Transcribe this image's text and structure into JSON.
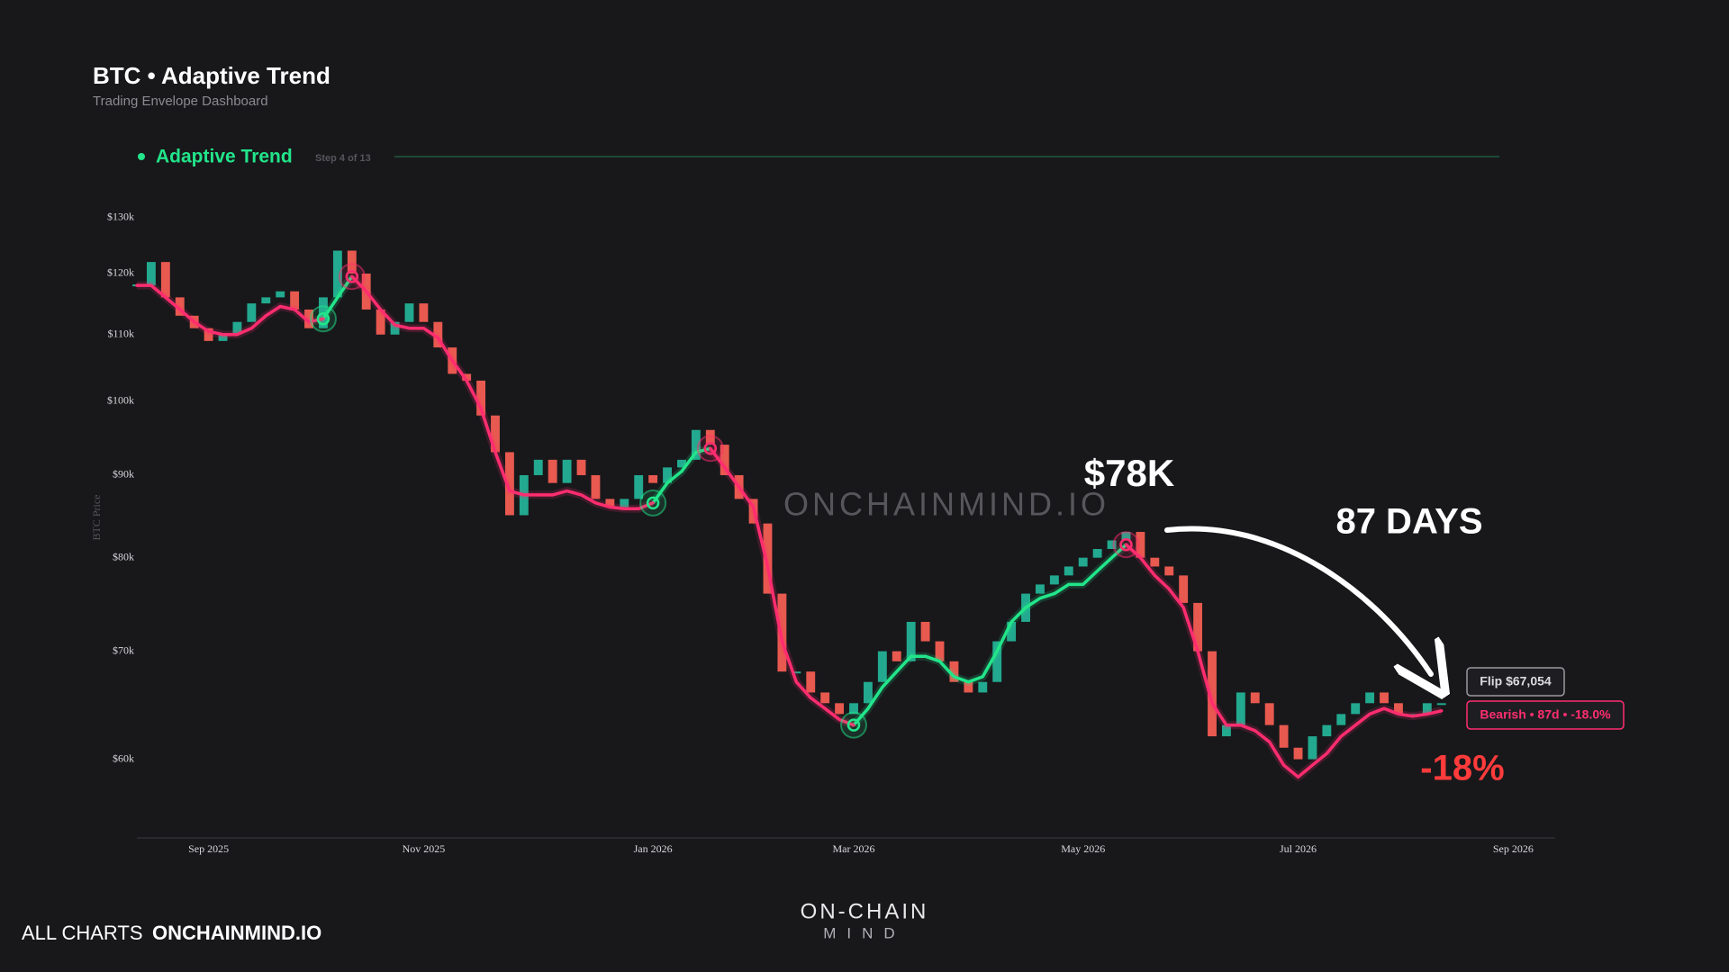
{
  "header": {
    "title": "BTC • Adaptive Trend",
    "subtitle": "Trading Envelope Dashboard"
  },
  "step": {
    "label": "Adaptive Trend",
    "counter": "Step 4 of 13"
  },
  "watermark": "ONCHAINMIND.IO",
  "footer": {
    "link_label": "ALL CHARTS",
    "link": "ONCHAINMIND.IO",
    "logo_top": "ON-CHAIN",
    "logo_bottom": "MIND"
  },
  "chart_data": {
    "type": "candlestick",
    "ylabel": "BTC Price",
    "log_scale": true,
    "grid": false,
    "ylim": [
      53700,
      133500
    ],
    "yticks": [
      {
        "value": 60000,
        "label": "$60k"
      },
      {
        "value": 70000,
        "label": "$70k"
      },
      {
        "value": 80000,
        "label": "$80k"
      },
      {
        "value": 90000,
        "label": "$90k"
      },
      {
        "value": 100000,
        "label": "$100k"
      },
      {
        "value": 110000,
        "label": "$110k"
      },
      {
        "value": 120000,
        "label": "$120k"
      },
      {
        "value": 130000,
        "label": "$130k"
      }
    ],
    "categories": [
      null,
      null,
      null,
      null,
      null,
      "Sep 2025",
      null,
      null,
      null,
      null,
      null,
      null,
      null,
      null,
      null,
      null,
      null,
      null,
      null,
      null,
      "Nov 2025",
      null,
      null,
      null,
      null,
      null,
      null,
      null,
      null,
      null,
      null,
      null,
      null,
      null,
      null,
      null,
      "Jan 2026",
      null,
      null,
      null,
      null,
      null,
      null,
      null,
      null,
      null,
      null,
      null,
      null,
      null,
      "Mar 2026",
      null,
      null,
      null,
      null,
      null,
      null,
      null,
      null,
      null,
      null,
      null,
      null,
      null,
      null,
      null,
      "May 2026",
      null,
      null,
      null,
      null,
      null,
      null,
      null,
      null,
      null,
      null,
      null,
      null,
      null,
      null,
      "Jul 2026",
      null,
      null,
      null,
      null,
      null,
      null,
      null,
      null,
      null,
      null,
      null,
      null,
      null,
      null,
      "Sep 2026",
      null,
      null
    ],
    "up_color": "#22a98f",
    "down_color": "#e8594f",
    "values": [
      118000,
      122000,
      116000,
      113000,
      111000,
      109000,
      110000,
      112000,
      115000,
      116000,
      117000,
      114000,
      111000,
      116000,
      124000,
      120000,
      114000,
      110000,
      112000,
      115000,
      112000,
      108000,
      104000,
      103000,
      98000,
      93000,
      85000,
      90000,
      92000,
      89000,
      92000,
      90000,
      87000,
      86000,
      87000,
      90000,
      89000,
      91000,
      92000,
      96000,
      94000,
      90000,
      87000,
      84000,
      76000,
      68000,
      68000,
      66000,
      65000,
      64000,
      65000,
      67000,
      70000,
      69000,
      73000,
      71000,
      69000,
      67000,
      66000,
      67000,
      71000,
      73000,
      76000,
      77000,
      78000,
      79000,
      80000,
      81000,
      82000,
      83000,
      80000,
      79000,
      78000,
      75000,
      70000,
      62000,
      63000,
      66000,
      65000,
      63000,
      61000,
      60000,
      62000,
      63000,
      64000,
      65000,
      66000,
      65000,
      64000,
      64000,
      65000,
      65000,
      null,
      null,
      null,
      null,
      null,
      null,
      null
    ],
    "trend": [
      {
        "color": "#22e58a",
        "values": [
          null,
          null,
          null,
          null,
          null,
          null,
          null,
          null,
          null,
          null,
          null,
          null,
          null,
          112500,
          116000,
          119500,
          null,
          null,
          null,
          null,
          null,
          null,
          null,
          null,
          null,
          null,
          null,
          null,
          null,
          null,
          null,
          null,
          null,
          null,
          null,
          null,
          86500,
          89000,
          90500,
          93000,
          93500,
          null,
          null,
          null,
          null,
          null,
          null,
          null,
          null,
          null,
          63000,
          64500,
          66500,
          68000,
          69500,
          69500,
          69000,
          67500,
          67000,
          67500,
          70000,
          73000,
          74500,
          75500,
          76000,
          77000,
          77000,
          78500,
          80000,
          81500,
          null,
          null,
          null,
          null,
          null,
          null,
          null,
          null,
          null,
          null,
          null,
          null,
          null,
          null,
          null,
          null,
          null,
          null,
          null,
          null,
          null,
          null,
          null,
          null,
          null,
          null,
          null,
          null,
          null
        ]
      },
      {
        "color": "#ff2d6f",
        "values": [
          118000,
          118000,
          116000,
          114000,
          112000,
          110500,
          110000,
          110000,
          111000,
          113000,
          114500,
          114000,
          112000,
          112500,
          null,
          119500,
          117000,
          114000,
          111500,
          111000,
          111000,
          109500,
          106000,
          103000,
          99000,
          93000,
          88000,
          87500,
          87500,
          87500,
          88000,
          87500,
          86500,
          86000,
          85800,
          85800,
          86500,
          null,
          null,
          null,
          93500,
          91000,
          88500,
          86000,
          79000,
          71000,
          67000,
          65500,
          64500,
          63500,
          63000,
          null,
          null,
          null,
          null,
          null,
          null,
          null,
          null,
          null,
          null,
          null,
          null,
          null,
          null,
          null,
          null,
          null,
          null,
          81500,
          80000,
          78000,
          76500,
          74500,
          70000,
          65000,
          63000,
          63000,
          62500,
          61500,
          59500,
          58500,
          59500,
          60500,
          62000,
          63000,
          64000,
          64500,
          64000,
          63800,
          64000,
          64300,
          null,
          null,
          null,
          null,
          null,
          null,
          null
        ]
      }
    ],
    "annotations": {
      "peak": "$78K",
      "duration": "87 DAYS",
      "change": "-18%",
      "flip": "Flip $67,054",
      "state": "Bearish • 87d • -18.0%"
    }
  }
}
